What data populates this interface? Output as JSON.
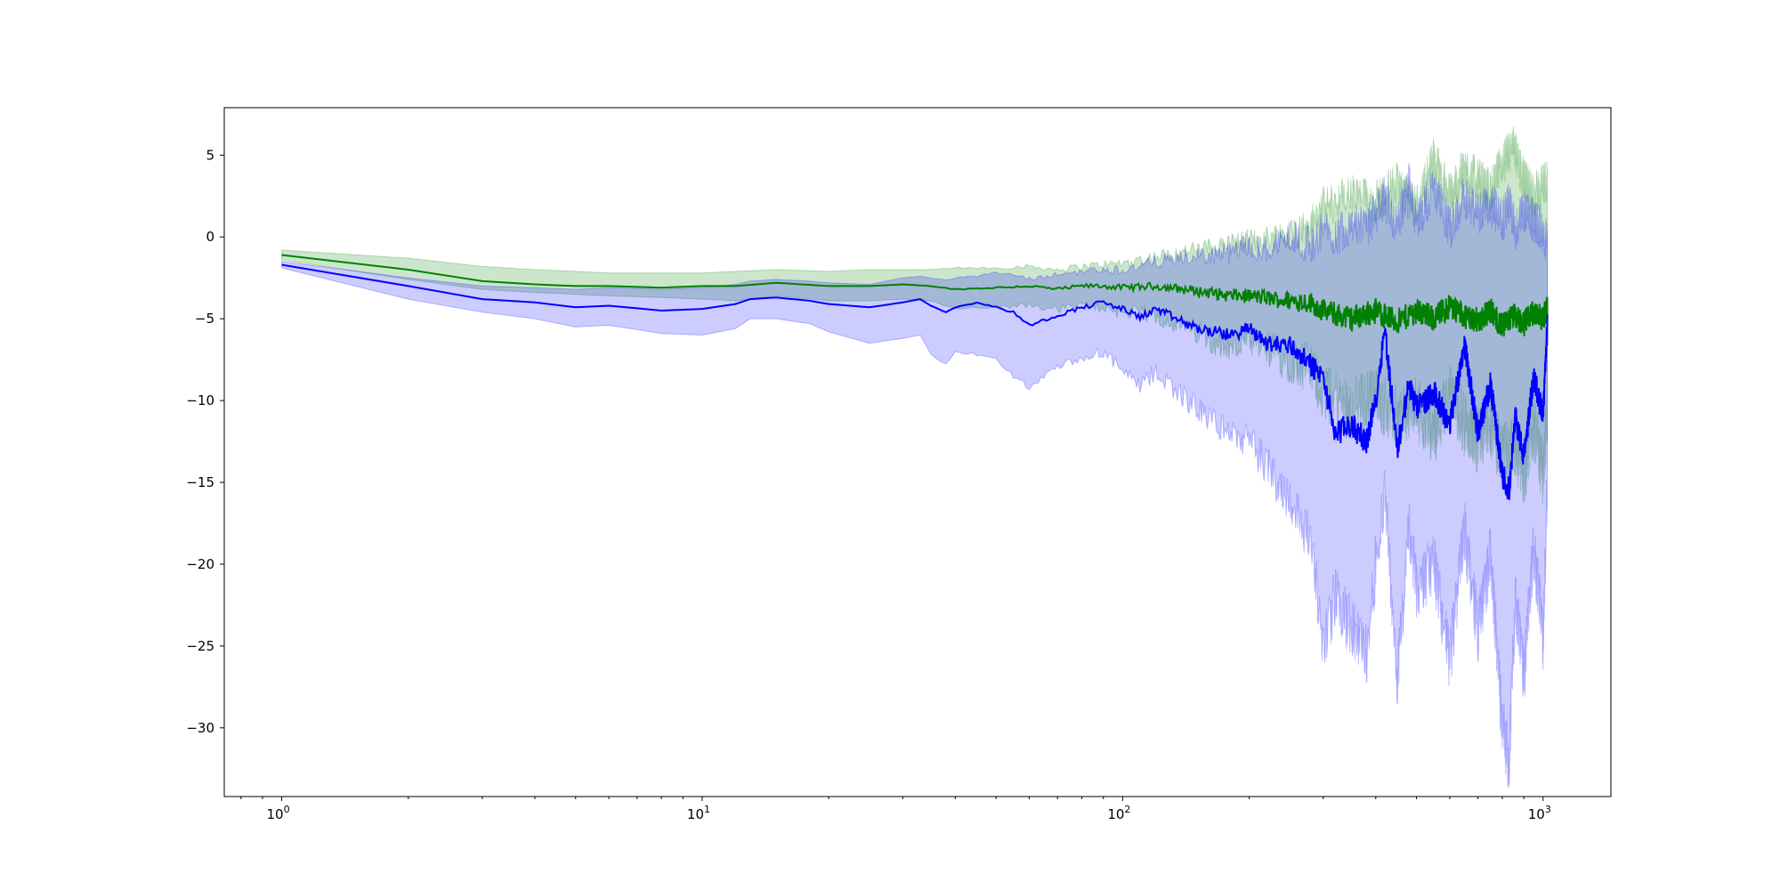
{
  "chart_data": {
    "type": "line",
    "title": "",
    "xlabel": "",
    "ylabel": "",
    "xscale": "log",
    "xlim": [
      0.73,
      1450
    ],
    "ylim": [
      -34.2,
      7.9
    ],
    "grid": false,
    "legend": "none",
    "xticks": [
      {
        "value": 1,
        "base": "10",
        "exp": "0"
      },
      {
        "value": 10,
        "base": "10",
        "exp": "1"
      },
      {
        "value": 100,
        "base": "10",
        "exp": "2"
      },
      {
        "value": 1000,
        "base": "10",
        "exp": "3"
      }
    ],
    "yticks": [
      {
        "value": 5,
        "label": "5"
      },
      {
        "value": 0,
        "label": "0"
      },
      {
        "value": -5,
        "label": "−5"
      },
      {
        "value": -10,
        "label": "−10"
      },
      {
        "value": -15,
        "label": "−15"
      },
      {
        "value": -20,
        "label": "−20"
      },
      {
        "value": -25,
        "label": "−25"
      },
      {
        "value": -30,
        "label": "−30"
      }
    ],
    "series": [
      {
        "color": "#008000",
        "band_color": "#008000",
        "band_opacity": 0.2,
        "x": [
          1,
          2,
          3,
          4,
          5,
          6,
          8,
          10,
          12,
          15,
          20,
          25,
          30,
          35,
          40,
          50,
          60,
          70,
          80,
          90,
          100,
          120,
          150,
          180,
          200,
          250,
          280,
          300,
          350,
          400,
          450,
          500,
          550,
          600,
          650,
          700,
          750,
          800,
          850,
          900,
          950,
          1000,
          1024
        ],
        "mean": [
          -1.1,
          -2.0,
          -2.7,
          -2.9,
          -3.0,
          -3.0,
          -3.1,
          -3.0,
          -3.0,
          -2.8,
          -3.0,
          -3.0,
          -2.9,
          -3.0,
          -3.2,
          -3.1,
          -3.0,
          -3.2,
          -3.0,
          -3.0,
          -3.1,
          -3.0,
          -3.3,
          -3.6,
          -3.6,
          -3.9,
          -4.0,
          -4.5,
          -5.0,
          -4.5,
          -5.2,
          -4.5,
          -5.0,
          -4.2,
          -4.8,
          -5.1,
          -4.5,
          -5.5,
          -4.8,
          -5.3,
          -4.6,
          -5.0,
          -4.2
        ],
        "upper": [
          -0.8,
          -1.3,
          -1.8,
          -2.0,
          -2.1,
          -2.2,
          -2.2,
          -2.2,
          -2.1,
          -2.0,
          -2.1,
          -2.0,
          -2.0,
          -2.0,
          -1.9,
          -1.9,
          -1.8,
          -2.0,
          -1.8,
          -1.7,
          -1.6,
          -1.2,
          -0.8,
          -0.4,
          -0.3,
          0.2,
          0.8,
          1.8,
          2.5,
          2.2,
          3.2,
          1.8,
          4.8,
          2.5,
          4.2,
          3.5,
          2.8,
          4.5,
          5.5,
          3.5,
          2.5,
          3.2,
          3.5
        ],
        "lower": [
          -1.4,
          -2.6,
          -3.2,
          -3.4,
          -3.5,
          -3.6,
          -3.7,
          -3.8,
          -3.9,
          -3.6,
          -3.9,
          -3.9,
          -3.8,
          -3.9,
          -4.4,
          -4.3,
          -4.2,
          -4.4,
          -4.2,
          -4.3,
          -4.6,
          -4.8,
          -5.8,
          -6.8,
          -6.5,
          -7.5,
          -8.0,
          -9.5,
          -10.5,
          -9.8,
          -11.0,
          -10.5,
          -12.0,
          -9.5,
          -11.5,
          -12.5,
          -11.5,
          -13.5,
          -12.5,
          -14.5,
          -11.5,
          -14.5,
          -10.5
        ]
      },
      {
        "color": "#0000ff",
        "band_color": "#0000ff",
        "band_opacity": 0.2,
        "x": [
          1,
          2,
          3,
          4,
          5,
          6,
          8,
          10,
          12,
          13,
          15,
          18,
          20,
          25,
          30,
          33,
          35,
          38,
          40,
          45,
          50,
          55,
          60,
          70,
          80,
          90,
          100,
          110,
          120,
          150,
          180,
          200,
          220,
          250,
          280,
          300,
          320,
          350,
          380,
          400,
          420,
          450,
          480,
          500,
          550,
          600,
          650,
          700,
          750,
          800,
          830,
          860,
          900,
          950,
          1000,
          1024
        ],
        "mean": [
          -1.7,
          -3.0,
          -3.8,
          -4.0,
          -4.3,
          -4.2,
          -4.5,
          -4.4,
          -4.1,
          -3.8,
          -3.7,
          -3.9,
          -4.1,
          -4.3,
          -4.0,
          -3.8,
          -4.2,
          -4.6,
          -4.3,
          -4.0,
          -4.3,
          -4.6,
          -5.4,
          -4.8,
          -4.3,
          -4.0,
          -4.4,
          -4.9,
          -4.4,
          -5.6,
          -6.0,
          -5.6,
          -6.5,
          -6.6,
          -7.8,
          -8.6,
          -12.0,
          -11.5,
          -12.5,
          -10.0,
          -5.5,
          -13.0,
          -9.0,
          -10.5,
          -9.5,
          -11.5,
          -6.5,
          -12.0,
          -9.0,
          -14.5,
          -15.5,
          -11.0,
          -13.5,
          -8.5,
          -11.0,
          -5.5
        ],
        "upper": [
          -1.5,
          -2.5,
          -3.0,
          -3.1,
          -3.2,
          -3.1,
          -3.2,
          -3.1,
          -2.9,
          -2.7,
          -2.6,
          -2.7,
          -2.8,
          -2.9,
          -2.5,
          -2.4,
          -2.5,
          -2.6,
          -2.5,
          -2.4,
          -2.2,
          -2.3,
          -2.6,
          -2.3,
          -2.1,
          -2.0,
          -2.0,
          -1.8,
          -1.5,
          -1.2,
          -1.0,
          -0.5,
          -0.8,
          0.0,
          -0.5,
          0.5,
          0.0,
          1.0,
          0.5,
          1.5,
          2.5,
          0.5,
          3.5,
          1.0,
          3.0,
          0.5,
          2.5,
          1.5,
          2.0,
          1.0,
          2.0,
          0.5,
          1.5,
          1.0,
          0.5,
          -0.5
        ],
        "lower": [
          -1.9,
          -3.8,
          -4.6,
          -5.0,
          -5.5,
          -5.4,
          -5.9,
          -6.0,
          -5.6,
          -5.0,
          -5.0,
          -5.3,
          -5.8,
          -6.5,
          -6.2,
          -6.0,
          -7.2,
          -7.8,
          -7.0,
          -7.2,
          -7.5,
          -8.5,
          -9.2,
          -8.0,
          -7.5,
          -7.0,
          -8.2,
          -9.2,
          -8.2,
          -10.5,
          -12.0,
          -12.5,
          -14.0,
          -16.0,
          -18.5,
          -25.0,
          -22.0,
          -24.0,
          -25.5,
          -20.0,
          -15.5,
          -27.0,
          -18.0,
          -21.5,
          -20.0,
          -26.0,
          -18.0,
          -24.0,
          -19.5,
          -30.0,
          -32.0,
          -22.0,
          -27.0,
          -19.0,
          -24.5,
          -15.0
        ]
      }
    ]
  }
}
